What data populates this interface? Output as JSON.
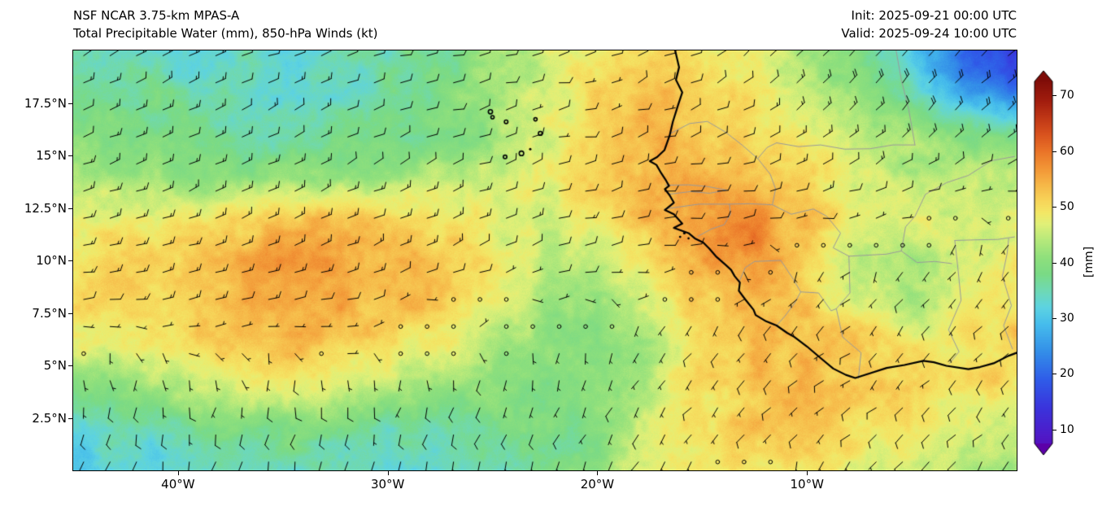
{
  "header": {
    "model_line": "NSF NCAR 3.75-km MPAS-A",
    "product_line": "Total Precipitable Water (mm), 850-hPa Winds (kt)",
    "init_line": "Init: 2025-09-21 00:00 UTC",
    "valid_line": "Valid: 2025-09-24 10:00 UTC"
  },
  "axes": {
    "lat_ticks": [
      {
        "value": 17.5,
        "label": "17.5°N"
      },
      {
        "value": 15,
        "label": "15°N"
      },
      {
        "value": 12.5,
        "label": "12.5°N"
      },
      {
        "value": 10,
        "label": "10°N"
      },
      {
        "value": 7.5,
        "label": "7.5°N"
      },
      {
        "value": 5,
        "label": "5°N"
      },
      {
        "value": 2.5,
        "label": "2.5°N"
      }
    ],
    "lon_ticks": [
      {
        "value": -40,
        "label": "40°W"
      },
      {
        "value": -30,
        "label": "30°W"
      },
      {
        "value": -20,
        "label": "20°W"
      },
      {
        "value": -10,
        "label": "10°W"
      }
    ]
  },
  "colorbar": {
    "label": "[mm]",
    "ticks": [
      10,
      20,
      30,
      40,
      50,
      60,
      70
    ],
    "body_range": [
      7.5,
      72.5
    ]
  },
  "chart_data": {
    "type": "heatmap",
    "title": "Total Precipitable Water (mm), 850-hPa Winds (kt)",
    "model": "NSF NCAR 3.75-km MPAS-A",
    "init_time": "2025-09-21 00:00 UTC",
    "valid_time": "2025-09-24 10:00 UTC",
    "units": "mm",
    "lon_range": [
      -45,
      0
    ],
    "lat_range": [
      0,
      20
    ],
    "tpw": {
      "lon": [
        -45,
        -42.5,
        -40,
        -37.5,
        -35,
        -32.5,
        -30,
        -27.5,
        -25,
        -22.5,
        -20,
        -17.5,
        -15,
        -12.5,
        -10,
        -7.5,
        -5,
        -2.5,
        0
      ],
      "lat": [
        20,
        18,
        16,
        14,
        12,
        10,
        8,
        6,
        4,
        2,
        0
      ],
      "values_mm": [
        [
          36,
          35,
          34,
          34,
          33,
          34,
          36,
          38,
          41,
          45,
          50,
          52,
          50,
          47,
          43,
          38,
          30,
          20,
          15
        ],
        [
          38,
          37,
          36,
          35,
          34,
          35,
          36,
          39,
          42,
          46,
          51,
          53,
          51,
          49,
          45,
          41,
          36,
          27,
          21
        ],
        [
          40,
          39,
          38,
          37,
          36,
          36,
          37,
          39,
          42,
          46,
          51,
          54,
          52,
          50,
          47,
          44,
          42,
          39,
          37
        ],
        [
          43,
          42,
          41,
          40,
          40,
          41,
          42,
          43,
          45,
          48,
          52,
          55,
          54,
          53,
          50,
          47,
          45,
          44,
          44
        ],
        [
          48,
          48,
          49,
          50,
          52,
          53,
          52,
          50,
          48,
          47,
          50,
          54,
          56,
          58,
          53,
          48,
          46,
          46,
          48
        ],
        [
          50,
          51,
          52,
          54,
          56,
          56,
          55,
          52,
          49,
          45,
          44,
          50,
          55,
          58,
          52,
          45,
          43,
          46,
          50
        ],
        [
          50,
          51,
          52,
          54,
          56,
          55,
          54,
          52,
          48,
          42,
          40,
          46,
          52,
          54,
          52,
          47,
          42,
          46,
          50
        ],
        [
          48,
          49,
          50,
          52,
          53,
          52,
          50,
          48,
          44,
          40,
          39,
          44,
          50,
          53,
          53,
          52,
          50,
          50,
          52
        ],
        [
          40,
          42,
          44,
          46,
          47,
          46,
          44,
          42,
          40,
          38,
          40,
          45,
          50,
          53,
          54,
          53,
          52,
          50,
          50
        ],
        [
          33,
          34,
          36,
          38,
          39,
          38,
          36,
          36,
          37,
          38,
          40,
          46,
          50,
          52,
          52,
          50,
          48,
          46,
          44
        ],
        [
          31,
          32,
          33,
          34,
          35,
          34,
          33,
          34,
          36,
          38,
          41,
          46,
          49,
          50,
          50,
          48,
          45,
          43,
          42
        ]
      ]
    },
    "colormap_stops": [
      [
        4,
        "#5c00a8"
      ],
      [
        9,
        "#4f1ac8"
      ],
      [
        14,
        "#3a34dc"
      ],
      [
        19,
        "#2f5ce8"
      ],
      [
        24,
        "#338ee8"
      ],
      [
        29,
        "#46bdec"
      ],
      [
        32,
        "#5dd3e2"
      ],
      [
        35,
        "#6fd9b4"
      ],
      [
        38,
        "#7ada85"
      ],
      [
        41,
        "#90e07c"
      ],
      [
        44,
        "#b5e97b"
      ],
      [
        47,
        "#e1f078"
      ],
      [
        49,
        "#f3e766"
      ],
      [
        51,
        "#f7d65a"
      ],
      [
        54,
        "#f6b748"
      ],
      [
        57,
        "#f29536"
      ],
      [
        60,
        "#ea7428"
      ],
      [
        63,
        "#d9531e"
      ],
      [
        66,
        "#c03716"
      ],
      [
        69,
        "#a21d0e"
      ],
      [
        73,
        "#7e0c08"
      ]
    ],
    "wind_barbs": {
      "units": "kt",
      "spacing_deg": 1.26,
      "regimes": [
        {
          "region": "north_of_ITCZ",
          "direction_from": "ENE",
          "speed_kt": "10-20"
        },
        {
          "region": "ITCZ_pocket_22-30W_6-9N",
          "direction_from": "variable",
          "speed_kt": "0-5"
        },
        {
          "region": "south_of_ITCZ_monsoon",
          "direction_from": "SSW",
          "speed_kt": "5-10"
        },
        {
          "region": "northeast_sahara",
          "direction_from": "NE",
          "speed_kt": "15-20"
        }
      ]
    }
  },
  "map_overlay": {
    "coast_color": "#000000",
    "border_color": "#9a9a9a",
    "coastline": [
      [
        -16.3,
        20.05
      ],
      [
        -16.1,
        19.2
      ],
      [
        -16.25,
        18.6
      ],
      [
        -15.95,
        18.0
      ],
      [
        -16.15,
        17.4
      ],
      [
        -16.4,
        16.6
      ],
      [
        -16.55,
        15.95
      ],
      [
        -16.8,
        15.25
      ],
      [
        -17.15,
        14.92
      ],
      [
        -17.5,
        14.73
      ],
      [
        -17.18,
        14.55
      ],
      [
        -16.95,
        14.15
      ],
      [
        -16.72,
        13.8
      ],
      [
        -16.58,
        13.55
      ],
      [
        -16.78,
        13.4
      ],
      [
        -16.55,
        13.1
      ],
      [
        -16.35,
        12.75
      ],
      [
        -16.78,
        12.4
      ],
      [
        -16.35,
        12.2
      ],
      [
        -15.95,
        11.75
      ],
      [
        -16.35,
        11.55
      ],
      [
        -15.65,
        11.3
      ],
      [
        -15.35,
        11.05
      ],
      [
        -14.95,
        10.85
      ],
      [
        -14.65,
        10.55
      ],
      [
        -14.35,
        10.2
      ],
      [
        -13.95,
        9.85
      ],
      [
        -13.62,
        9.55
      ],
      [
        -13.45,
        9.25
      ],
      [
        -13.2,
        8.95
      ],
      [
        -13.25,
        8.55
      ],
      [
        -12.95,
        8.15
      ],
      [
        -12.55,
        7.65
      ],
      [
        -12.45,
        7.4
      ],
      [
        -11.95,
        7.1
      ],
      [
        -11.45,
        6.9
      ],
      [
        -10.95,
        6.55
      ],
      [
        -10.6,
        6.35
      ],
      [
        -10.0,
        5.9
      ],
      [
        -9.35,
        5.35
      ],
      [
        -8.75,
        4.85
      ],
      [
        -8.15,
        4.55
      ],
      [
        -7.7,
        4.4
      ],
      [
        -7.0,
        4.62
      ],
      [
        -6.2,
        4.88
      ],
      [
        -5.35,
        5.02
      ],
      [
        -4.45,
        5.22
      ],
      [
        -3.95,
        5.15
      ],
      [
        -3.35,
        4.98
      ],
      [
        -2.3,
        4.82
      ],
      [
        -1.75,
        4.92
      ],
      [
        -1.1,
        5.1
      ],
      [
        -0.4,
        5.45
      ],
      [
        0.05,
        5.62
      ]
    ],
    "islands": [
      [
        -25.1,
        17.08,
        2.6
      ],
      [
        -25.0,
        16.82,
        2.0
      ],
      [
        -24.35,
        16.6,
        2.2
      ],
      [
        -22.95,
        16.72,
        2.0
      ],
      [
        -22.72,
        16.05,
        2.4
      ],
      [
        -23.62,
        15.1,
        2.8
      ],
      [
        -24.4,
        14.93,
        2.2
      ],
      [
        -23.2,
        15.3,
        1.5
      ],
      [
        -15.85,
        11.3,
        1.6
      ],
      [
        -16.05,
        11.12,
        1.4
      ],
      [
        -15.65,
        11.05,
        1.3
      ]
    ],
    "borders": [
      [
        [
          -16.5,
          16.05
        ],
        [
          -15.6,
          16.52
        ],
        [
          -14.75,
          16.62
        ],
        [
          -13.9,
          16.12
        ],
        [
          -13.1,
          15.5
        ],
        [
          -12.35,
          14.85
        ],
        [
          -11.9,
          15.38
        ],
        [
          -11.45,
          15.6
        ]
      ],
      [
        [
          -11.45,
          15.6
        ],
        [
          -10.4,
          15.42
        ],
        [
          -9.35,
          15.5
        ],
        [
          -8.2,
          15.3
        ],
        [
          -7.0,
          15.32
        ],
        [
          -5.9,
          15.5
        ],
        [
          -4.85,
          15.5
        ]
      ],
      [
        [
          -4.85,
          15.5
        ],
        [
          -5.15,
          17.2
        ],
        [
          -5.5,
          18.6
        ],
        [
          -5.75,
          20.0
        ]
      ],
      [
        [
          -12.35,
          14.85
        ],
        [
          -11.75,
          14.1
        ],
        [
          -11.5,
          13.4
        ],
        [
          -11.65,
          12.65
        ],
        [
          -12.75,
          12.7
        ],
        [
          -13.7,
          12.68
        ],
        [
          -15.15,
          12.68
        ],
        [
          -16.8,
          12.45
        ]
      ],
      [
        [
          -11.65,
          12.65
        ],
        [
          -10.75,
          12.2
        ],
        [
          -9.7,
          12.45
        ],
        [
          -9.05,
          12.1
        ],
        [
          -8.4,
          11.3
        ],
        [
          -8.75,
          10.6
        ],
        [
          -8.0,
          10.2
        ]
      ],
      [
        [
          -8.0,
          10.2
        ],
        [
          -7.1,
          10.25
        ],
        [
          -6.2,
          10.3
        ],
        [
          -5.5,
          10.45
        ],
        [
          -4.75,
          9.9
        ],
        [
          -3.9,
          9.95
        ],
        [
          -3.1,
          9.85
        ]
      ],
      [
        [
          -3.2,
          5.1
        ],
        [
          -2.75,
          5.65
        ],
        [
          -3.25,
          6.7
        ],
        [
          -2.65,
          8.1
        ],
        [
          -2.8,
          9.6
        ],
        [
          -2.95,
          10.95
        ]
      ],
      [
        [
          -2.95,
          10.95
        ],
        [
          -1.9,
          10.98
        ],
        [
          -0.9,
          11.0
        ],
        [
          -0.1,
          11.12
        ]
      ],
      [
        [
          -0.2,
          5.78
        ],
        [
          -0.62,
          6.9
        ],
        [
          -0.25,
          7.85
        ],
        [
          -0.68,
          9.25
        ],
        [
          -0.45,
          10.35
        ],
        [
          -0.38,
          11.05
        ]
      ],
      [
        [
          -7.55,
          4.38
        ],
        [
          -7.42,
          5.6
        ],
        [
          -8.3,
          6.35
        ],
        [
          -8.6,
          7.7
        ],
        [
          -7.95,
          8.45
        ],
        [
          -8.0,
          10.2
        ]
      ],
      [
        [
          -13.25,
          8.95
        ],
        [
          -12.95,
          9.65
        ],
        [
          -12.5,
          9.95
        ],
        [
          -11.25,
          10.0
        ],
        [
          -10.65,
          9.1
        ],
        [
          -10.3,
          8.5
        ]
      ],
      [
        [
          -11.45,
          6.9
        ],
        [
          -11.05,
          7.35
        ],
        [
          -10.6,
          7.95
        ],
        [
          -10.3,
          8.5
        ]
      ],
      [
        [
          -10.3,
          8.5
        ],
        [
          -9.45,
          8.45
        ],
        [
          -8.85,
          7.6
        ],
        [
          -8.6,
          7.7
        ]
      ],
      [
        [
          -16.6,
          13.15
        ],
        [
          -15.55,
          13.28
        ],
        [
          -14.65,
          13.2
        ],
        [
          -13.85,
          13.35
        ]
      ],
      [
        [
          -16.75,
          13.58
        ],
        [
          -15.65,
          13.6
        ],
        [
          -14.75,
          13.52
        ],
        [
          -13.85,
          13.35
        ]
      ],
      [
        [
          -5.5,
          10.45
        ],
        [
          -5.3,
          11.6
        ],
        [
          -4.85,
          12.1
        ],
        [
          -4.35,
          13.15
        ],
        [
          -3.35,
          13.7
        ],
        [
          -2.3,
          14.05
        ],
        [
          -1.2,
          14.75
        ],
        [
          -0.1,
          14.95
        ]
      ],
      [
        [
          -13.7,
          12.68
        ],
        [
          -13.65,
          12.2
        ],
        [
          -13.95,
          11.7
        ],
        [
          -14.55,
          11.5
        ],
        [
          -15.2,
          11.15
        ]
      ]
    ]
  }
}
